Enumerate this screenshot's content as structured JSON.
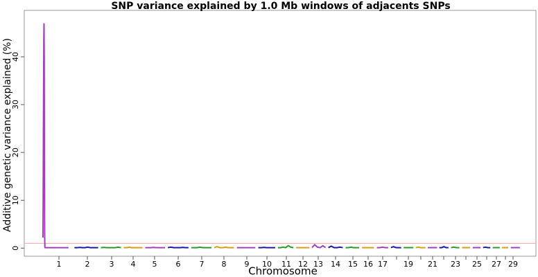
{
  "chart_data": {
    "type": "manhattan",
    "title": "SNP variance explained by 1.0 Mb windows of adjacents SNPs",
    "x_label": "Chromosome",
    "y_label": "Additive genetic variance explained (%)",
    "ylim": [
      -1.7,
      49.7
    ],
    "yticks": [
      0,
      10,
      20,
      30,
      40
    ],
    "threshold": 1,
    "threshold_color": "#f4a6a6",
    "series": [
      {
        "name": "1",
        "color": "#a040c0",
        "values": [
          2.2,
          12,
          25,
          35,
          44,
          47,
          40,
          20,
          3,
          0.2,
          0.1,
          0.1,
          0.1,
          0.1,
          0.1,
          0.1
        ]
      },
      {
        "name": "2",
        "color": "#1a1aa6",
        "values": [
          0.1,
          0.1,
          0.15,
          0.1,
          0.1,
          0.2,
          0.1,
          0.1,
          0.1,
          0.1
        ]
      },
      {
        "name": "3",
        "color": "#2a9a2a",
        "values": [
          0.1,
          0.15,
          0.1,
          0.1,
          0.1,
          0.1,
          0.2,
          0.1
        ]
      },
      {
        "name": "4",
        "color": "#d4a017",
        "values": [
          0.1,
          0.1,
          0.2,
          0.1,
          0.1,
          0.1,
          0.1,
          0.1
        ]
      },
      {
        "name": "5",
        "color": "#a040c0",
        "values": [
          0.1,
          0.1,
          0.1,
          0.15,
          0.1,
          0.1,
          0.1,
          0.1
        ]
      },
      {
        "name": "6",
        "color": "#1a1aa6",
        "values": [
          0.1,
          0.2,
          0.1,
          0.1,
          0.1,
          0.15,
          0.1,
          0.1
        ]
      },
      {
        "name": "7",
        "color": "#2a9a2a",
        "values": [
          0.1,
          0.1,
          0.1,
          0.2,
          0.1,
          0.1,
          0.1,
          0.1
        ]
      },
      {
        "name": "8",
        "color": "#d4a017",
        "values": [
          0.1,
          0.3,
          0.1,
          0.1,
          0.2,
          0.1,
          0.1,
          0.1
        ]
      },
      {
        "name": "9",
        "color": "#a040c0",
        "values": [
          0.1,
          0.1,
          0.1,
          0.1,
          0.1,
          0.1,
          0.1
        ]
      },
      {
        "name": "10",
        "color": "#1a1aa6",
        "values": [
          0.1,
          0.1,
          0.15,
          0.1,
          0.1,
          0.1,
          0.1
        ]
      },
      {
        "name": "11",
        "color": "#2a9a2a",
        "values": [
          0.1,
          0.1,
          0.2,
          0.1,
          0.5,
          0.2,
          0.1
        ]
      },
      {
        "name": "12",
        "color": "#d4a017",
        "values": [
          0.1,
          0.1,
          0.1,
          0.1,
          0.1,
          0.1
        ]
      },
      {
        "name": "13",
        "color": "#a040c0",
        "values": [
          0.1,
          0.7,
          0.2,
          0.1,
          0.5,
          0.1
        ]
      },
      {
        "name": "14",
        "color": "#1a1aa6",
        "values": [
          0.1,
          0.4,
          0.1,
          0.1,
          0.2,
          0.1
        ]
      },
      {
        "name": "15",
        "color": "#2a9a2a",
        "values": [
          0.1,
          0.1,
          0.2,
          0.1,
          0.1,
          0.1
        ]
      },
      {
        "name": "16",
        "color": "#d4a017",
        "values": [
          0.1,
          0.1,
          0.1,
          0.1,
          0.1
        ]
      },
      {
        "name": "17",
        "color": "#a040c0",
        "values": [
          0.1,
          0.1,
          0.2,
          0.1,
          0.1
        ]
      },
      {
        "name": null,
        "color": "#1a1aa6",
        "values": [
          0.1,
          0.3,
          0.1,
          0.1,
          0.1
        ]
      },
      {
        "name": "19",
        "color": "#2a9a2a",
        "values": [
          0.1,
          0.1,
          0.1,
          0.1,
          0.1
        ]
      },
      {
        "name": null,
        "color": "#d4a017",
        "values": [
          0.1,
          0.2,
          0.1,
          0.1,
          0.1
        ]
      },
      {
        "name": "21",
        "color": "#a040c0",
        "values": [
          0.1,
          0.1,
          0.1,
          0.1,
          0.1
        ]
      },
      {
        "name": null,
        "color": "#1a1aa6",
        "values": [
          0.1,
          0.1,
          0.3,
          0.1,
          0.1
        ]
      },
      {
        "name": "23",
        "color": "#2a9a2a",
        "values": [
          0.1,
          0.2,
          0.1,
          0.1
        ]
      },
      {
        "name": null,
        "color": "#d4a017",
        "values": [
          0.1,
          0.1,
          0.1,
          0.1
        ]
      },
      {
        "name": "25",
        "color": "#a040c0",
        "values": [
          0.1,
          0.1,
          0.1,
          0.1
        ]
      },
      {
        "name": null,
        "color": "#1a1aa6",
        "values": [
          0.1,
          0.2,
          0.1,
          0.1
        ]
      },
      {
        "name": "27",
        "color": "#2a9a2a",
        "values": [
          0.1,
          0.1,
          0.1,
          0.1
        ]
      },
      {
        "name": null,
        "color": "#d4a017",
        "values": [
          0.1,
          0.1,
          0.1,
          0.1
        ]
      },
      {
        "name": "29",
        "color": "#a040c0",
        "values": [
          0.1,
          0.1,
          0.1,
          0.1
        ]
      }
    ]
  }
}
